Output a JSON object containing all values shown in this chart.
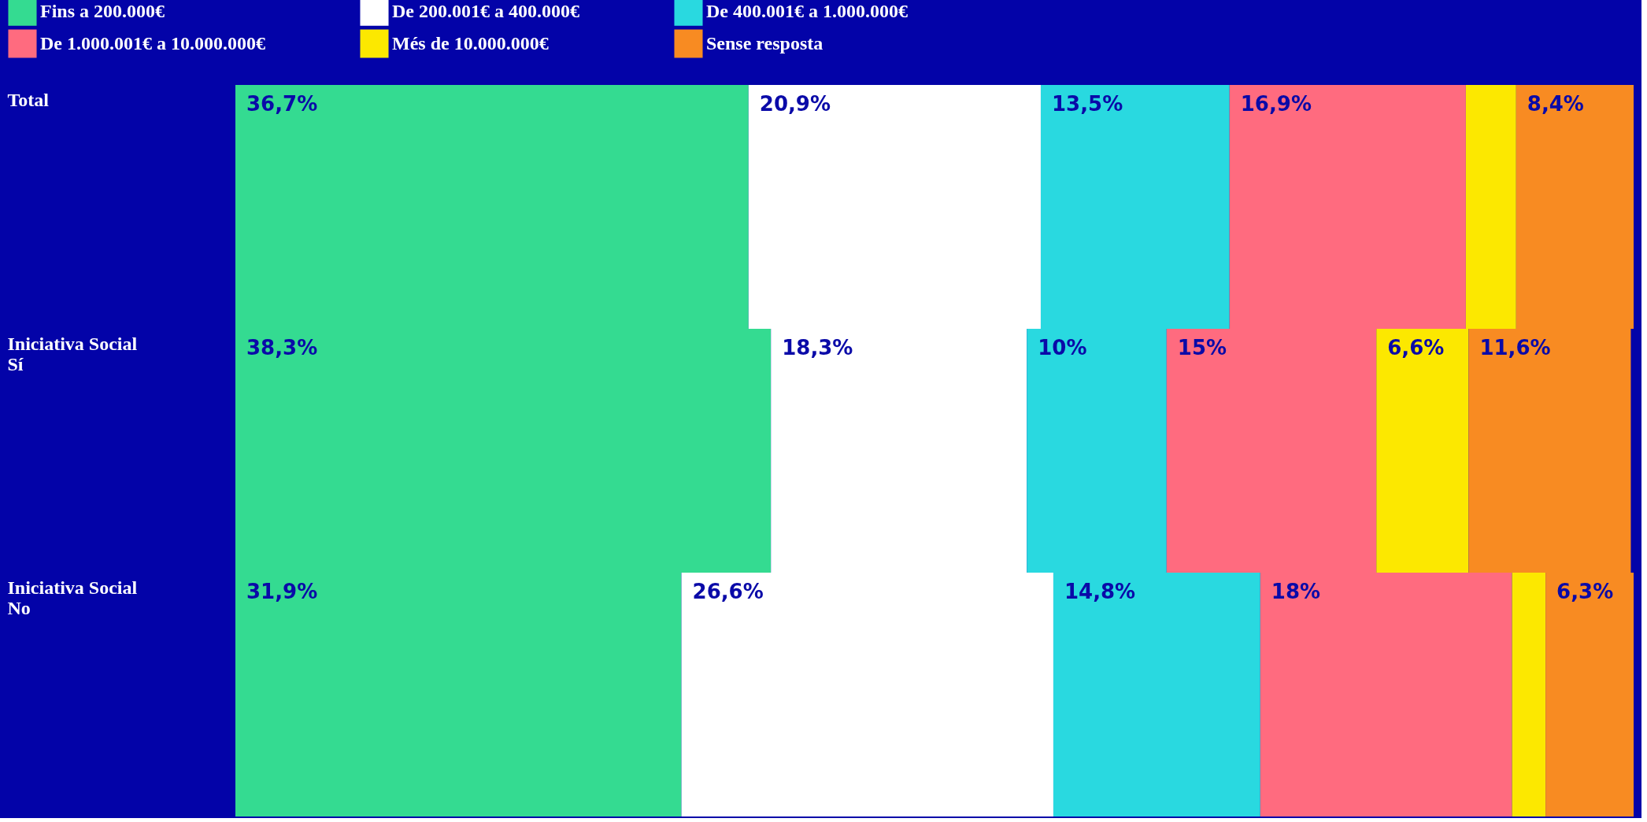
{
  "chart_data": {
    "type": "bar",
    "orientation": "horizontal",
    "stacked": true,
    "legend": "top",
    "grid": false,
    "tick_labels": "y",
    "xlim": [
      0,
      100
    ],
    "categories": [
      "Total",
      "Iniciativa Social Sí",
      "Iniciativa Social No"
    ],
    "series": [
      {
        "name": "Fins a 200.000€",
        "color": "#34db91",
        "values": [
          36.7,
          38.3,
          31.9
        ],
        "value_labels": [
          "36,7%",
          "38,3%",
          "31,9%"
        ]
      },
      {
        "name": "De 200.001€ a 400.000€",
        "color": "#ffffff",
        "values": [
          20.9,
          18.3,
          26.6
        ],
        "value_labels": [
          "20,9%",
          "18,3%",
          "26,6%"
        ]
      },
      {
        "name": "De 400.001€ a 1.000.000€",
        "color": "#29d9e0",
        "values": [
          13.5,
          10,
          14.8
        ],
        "value_labels": [
          "13,5%",
          "10%",
          "14,8%"
        ]
      },
      {
        "name": "De 1.000.001€ a 10.000.000€",
        "color": "#ff6b7f",
        "values": [
          16.9,
          15,
          18
        ],
        "value_labels": [
          "16,9%",
          "15%",
          "18%"
        ]
      },
      {
        "name": "Més de 10.000.000€",
        "color": "#fce800",
        "values": [
          3.6,
          6.6,
          2.4
        ],
        "value_labels": [
          null,
          "6,6%",
          null
        ]
      },
      {
        "name": "Sense resposta",
        "color": "#f88b22",
        "values": [
          8.4,
          11.6,
          6.3
        ],
        "value_labels": [
          "8,4%",
          "11,6%",
          "6,3%"
        ]
      }
    ]
  }
}
